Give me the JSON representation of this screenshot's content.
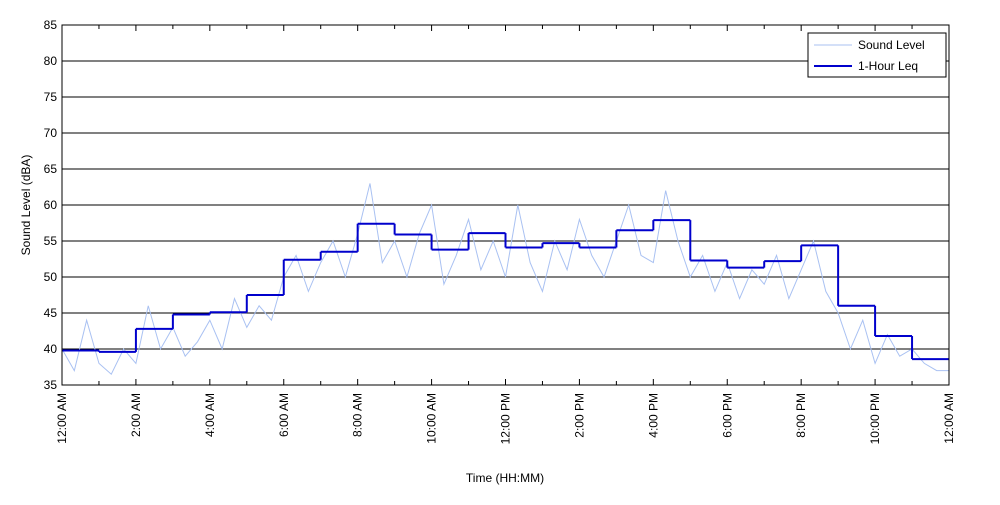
{
  "chart_data": {
    "type": "line",
    "x_label": "Time (HH:MM)",
    "y_label": "Sound Level (dBA)",
    "xlim": [
      0,
      1440
    ],
    "ylim": [
      35,
      85
    ],
    "xticks": [
      {
        "value": 0,
        "label": "12:00 AM"
      },
      {
        "value": 120,
        "label": "2:00 AM"
      },
      {
        "value": 240,
        "label": "4:00 AM"
      },
      {
        "value": 360,
        "label": "6:00 AM"
      },
      {
        "value": 480,
        "label": "8:00 AM"
      },
      {
        "value": 600,
        "label": "10:00 AM"
      },
      {
        "value": 720,
        "label": "12:00 PM"
      },
      {
        "value": 840,
        "label": "2:00 PM"
      },
      {
        "value": 960,
        "label": "4:00 PM"
      },
      {
        "value": 1080,
        "label": "6:00 PM"
      },
      {
        "value": 1200,
        "label": "8:00 PM"
      },
      {
        "value": 1320,
        "label": "10:00 PM"
      },
      {
        "value": 1440,
        "label": "12:00 AM"
      }
    ],
    "xminorticks": [
      60,
      180,
      300,
      420,
      540,
      660,
      780,
      900,
      1020,
      1140,
      1260,
      1380
    ],
    "yticks": [
      35,
      40,
      45,
      50,
      55,
      60,
      65,
      70,
      75,
      80,
      85
    ],
    "grid": "y",
    "legend": "upper right",
    "series": [
      {
        "name": "Sound Level",
        "color": "#a9c1f2",
        "style": "line",
        "x": [
          0,
          20,
          40,
          60,
          80,
          100,
          120,
          140,
          160,
          180,
          200,
          220,
          240,
          260,
          280,
          300,
          320,
          340,
          360,
          380,
          400,
          420,
          440,
          460,
          480,
          500,
          520,
          540,
          560,
          580,
          600,
          620,
          640,
          660,
          680,
          700,
          720,
          740,
          760,
          780,
          800,
          820,
          840,
          860,
          880,
          900,
          920,
          940,
          960,
          980,
          1000,
          1020,
          1040,
          1060,
          1080,
          1100,
          1120,
          1140,
          1160,
          1180,
          1200,
          1220,
          1240,
          1260,
          1280,
          1300,
          1320,
          1340,
          1360,
          1380,
          1400,
          1420,
          1440
        ],
        "values": [
          40,
          37,
          44,
          38,
          36.5,
          40,
          38,
          46,
          40,
          43,
          39,
          41,
          44,
          40,
          47,
          43,
          46,
          44,
          50,
          53,
          48,
          52,
          55,
          50,
          56,
          63,
          52,
          55,
          50,
          56,
          60,
          49,
          53,
          58,
          51,
          55,
          50,
          60,
          52,
          48,
          55,
          51,
          58,
          53,
          50,
          55,
          60,
          53,
          52,
          62,
          55,
          50,
          53,
          48,
          52,
          47,
          51,
          49,
          53,
          47,
          51,
          55,
          48,
          45,
          40,
          44,
          38,
          42,
          39,
          40,
          38,
          37,
          37
        ]
      },
      {
        "name": "1-Hour Leq",
        "color": "#0000cc",
        "style": "step",
        "x": [
          0,
          60,
          120,
          180,
          240,
          300,
          360,
          420,
          480,
          540,
          600,
          660,
          720,
          780,
          840,
          900,
          960,
          1020,
          1080,
          1140,
          1200,
          1260,
          1320,
          1380
        ],
        "values": [
          39.8,
          39.6,
          42.8,
          44.8,
          45.1,
          47.5,
          52.4,
          53.5,
          57.4,
          55.9,
          53.8,
          56.1,
          54.1,
          54.7,
          54.1,
          56.5,
          57.9,
          52.3,
          51.3,
          52.2,
          54.4,
          46.0,
          41.8,
          38.6
        ]
      }
    ]
  }
}
